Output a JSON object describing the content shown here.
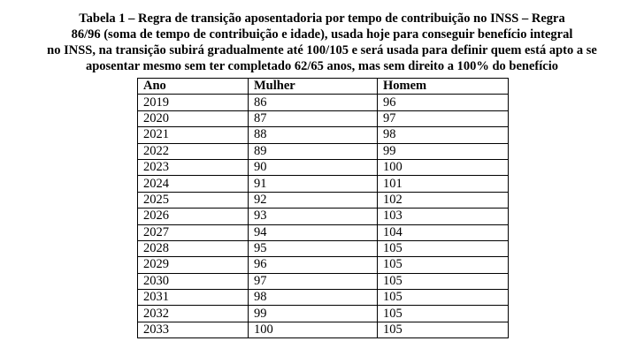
{
  "caption": {
    "lines": [
      "Tabela 1 – Regra de transição aposentadoria por tempo de contribuição no INSS – Regra",
      "86/96 (soma de tempo de contribuição e idade), usada hoje para conseguir benefício integral",
      "no INSS, na transição subirá gradualmente até 100/105 e será usada para definir quem está apto a se",
      "aposentar mesmo sem ter completado 62/65 anos, mas sem direito a 100% do benefício"
    ]
  },
  "table": {
    "headers": [
      "Ano",
      "Mulher",
      "Homem"
    ],
    "rows": [
      [
        "2019",
        "86",
        "96"
      ],
      [
        "2020",
        "87",
        "97"
      ],
      [
        "2021",
        "88",
        "98"
      ],
      [
        "2022",
        "89",
        "99"
      ],
      [
        "2023",
        "90",
        "100"
      ],
      [
        "2024",
        "91",
        "101"
      ],
      [
        "2025",
        "92",
        "102"
      ],
      [
        "2026",
        "93",
        "103"
      ],
      [
        "2027",
        "94",
        "104"
      ],
      [
        "2028",
        "95",
        "105"
      ],
      [
        "2029",
        "96",
        "105"
      ],
      [
        "2030",
        "97",
        "105"
      ],
      [
        "2031",
        "98",
        "105"
      ],
      [
        "2032",
        "99",
        "105"
      ],
      [
        "2033",
        "100",
        "105"
      ]
    ]
  }
}
